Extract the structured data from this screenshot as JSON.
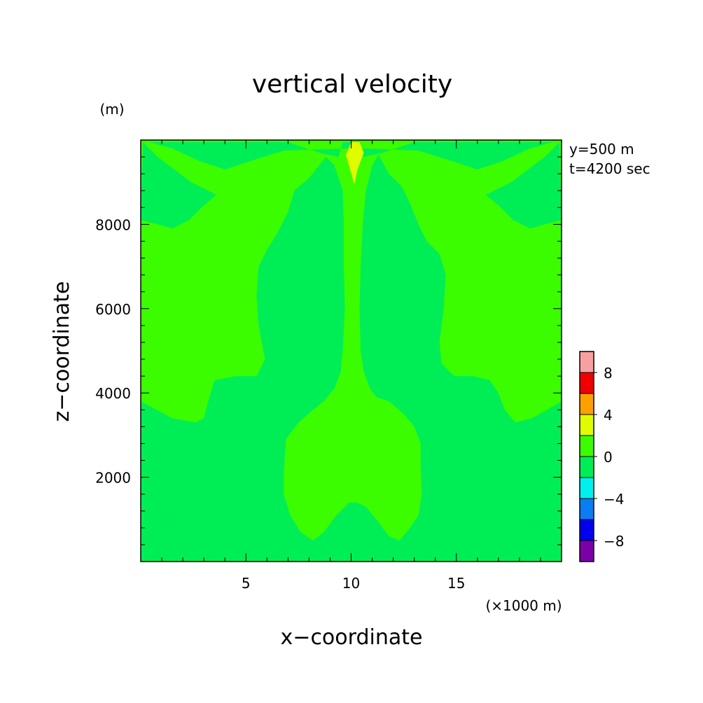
{
  "chart_data": {
    "type": "heatmap",
    "title": "vertical velocity",
    "xlabel": "x−coordinate",
    "ylabel": "z−coordinate",
    "x_unit": "(×1000 m)",
    "y_unit": "(m)",
    "info": [
      "y=500 m",
      "t=4200 sec"
    ],
    "xlim": [
      0,
      20
    ],
    "ylim": [
      0,
      10000
    ],
    "x_ticks": [
      5,
      10,
      15
    ],
    "y_ticks": [
      2000,
      4000,
      6000,
      8000
    ],
    "x_tick_labels": [
      "5",
      "10",
      "15"
    ],
    "y_tick_labels": [
      "2000",
      "4000",
      "6000",
      "8000"
    ],
    "colorbar": {
      "levels": [
        -10,
        -8,
        -6,
        -4,
        -2,
        0,
        2,
        4,
        6,
        8,
        10
      ],
      "labels": [
        "8",
        "4",
        "0",
        "−4",
        "−8"
      ],
      "label_values": [
        8,
        4,
        0,
        -4,
        -8
      ],
      "colors": [
        "#7b00a8",
        "#0000ee",
        "#0a7ef0",
        "#00f0f0",
        "#00ee55",
        "#3cfc00",
        "#e0fc00",
        "#fca000",
        "#f00000",
        "#f8a0a0"
      ]
    },
    "background_band": "0 to 2",
    "regions": [
      {
        "name": "left-negative-lobe",
        "band": "-2 to 0",
        "polygon": [
          [
            0,
            0
          ],
          [
            6.8,
            0
          ],
          [
            6.9,
            250
          ],
          [
            6.6,
            500
          ],
          [
            6.0,
            900
          ],
          [
            5.3,
            1200
          ],
          [
            4.4,
            1400
          ],
          [
            3.5,
            1300
          ],
          [
            2.5,
            1050
          ],
          [
            0,
            1000
          ]
        ]
      },
      {
        "name": "right-negative-lobe",
        "band": "-2 to 0",
        "polygon": [
          [
            20,
            0
          ],
          [
            13.3,
            0
          ],
          [
            13.2,
            250
          ],
          [
            13.5,
            500
          ],
          [
            14.0,
            900
          ],
          [
            14.7,
            1200
          ],
          [
            15.6,
            1400
          ],
          [
            16.5,
            1300
          ],
          [
            17.5,
            1050
          ],
          [
            20,
            1000
          ]
        ]
      },
      {
        "name": "central-negative-column",
        "band": "-2 to 0",
        "polygon": [
          [
            0,
            3800
          ],
          [
            1.5,
            3400
          ],
          [
            2.6,
            3300
          ],
          [
            3.0,
            3400
          ],
          [
            3.2,
            3800
          ],
          [
            3.5,
            4300
          ],
          [
            4.5,
            4400
          ],
          [
            5.5,
            4400
          ],
          [
            5.9,
            4800
          ],
          [
            5.6,
            5600
          ],
          [
            5.5,
            6300
          ],
          [
            5.6,
            7000
          ],
          [
            6.0,
            7400
          ],
          [
            6.5,
            7800
          ],
          [
            7.0,
            8300
          ],
          [
            7.3,
            8800
          ],
          [
            8.0,
            9100
          ],
          [
            8.8,
            9600
          ],
          [
            9.2,
            9400
          ],
          [
            9.6,
            8800
          ],
          [
            9.65,
            8000
          ],
          [
            9.65,
            7000
          ],
          [
            9.7,
            6000
          ],
          [
            9.6,
            5000
          ],
          [
            9.5,
            4500
          ],
          [
            9.2,
            4100
          ],
          [
            8.7,
            3800
          ],
          [
            8.2,
            3600
          ],
          [
            7.5,
            3300
          ],
          [
            6.9,
            2900
          ],
          [
            6.8,
            2100
          ],
          [
            6.8,
            1600
          ],
          [
            7.1,
            1100
          ],
          [
            7.6,
            700
          ],
          [
            8.2,
            500
          ],
          [
            8.7,
            700
          ],
          [
            9.3,
            1100
          ],
          [
            9.9,
            1400
          ],
          [
            10.3,
            1400
          ],
          [
            10.7,
            1300
          ],
          [
            11.2,
            1000
          ],
          [
            11.8,
            600
          ],
          [
            12.3,
            500
          ],
          [
            12.8,
            800
          ],
          [
            13.2,
            1100
          ],
          [
            13.35,
            1600
          ],
          [
            13.3,
            2200
          ],
          [
            13.3,
            2800
          ],
          [
            13.0,
            3200
          ],
          [
            12.5,
            3500
          ],
          [
            11.8,
            3800
          ],
          [
            11.2,
            3900
          ],
          [
            10.9,
            4100
          ],
          [
            10.6,
            4500
          ],
          [
            10.45,
            5000
          ],
          [
            10.4,
            6000
          ],
          [
            10.45,
            7000
          ],
          [
            10.55,
            8000
          ],
          [
            10.7,
            8800
          ],
          [
            11.0,
            9400
          ],
          [
            11.3,
            9650
          ],
          [
            11.8,
            9200
          ],
          [
            12.4,
            8900
          ],
          [
            12.8,
            8500
          ],
          [
            13.2,
            8000
          ],
          [
            13.6,
            7600
          ],
          [
            14.2,
            7300
          ],
          [
            14.5,
            6800
          ],
          [
            14.4,
            6000
          ],
          [
            14.2,
            5200
          ],
          [
            14.3,
            4700
          ],
          [
            14.9,
            4400
          ],
          [
            15.8,
            4400
          ],
          [
            16.6,
            4300
          ],
          [
            17.0,
            4000
          ],
          [
            17.3,
            3600
          ],
          [
            17.8,
            3300
          ],
          [
            18.6,
            3400
          ],
          [
            19.3,
            3600
          ],
          [
            20,
            3800
          ],
          [
            20,
            1000
          ],
          [
            17.5,
            1050
          ],
          [
            16.5,
            1300
          ],
          [
            15.6,
            1400
          ],
          [
            14.7,
            1200
          ],
          [
            14.0,
            900
          ],
          [
            13.5,
            500
          ],
          [
            13.2,
            250
          ],
          [
            13.3,
            0
          ],
          [
            6.8,
            0
          ],
          [
            6.9,
            250
          ],
          [
            6.6,
            500
          ],
          [
            6.0,
            900
          ],
          [
            5.3,
            1200
          ],
          [
            4.4,
            1400
          ],
          [
            3.5,
            1300
          ],
          [
            2.5,
            1050
          ],
          [
            0,
            1000
          ]
        ]
      },
      {
        "name": "upper-left-negative",
        "band": "-2 to 0",
        "polygon": [
          [
            0.1,
            9950
          ],
          [
            0.8,
            9600
          ],
          [
            2.4,
            9000
          ],
          [
            3.6,
            8700
          ],
          [
            2.9,
            8400
          ],
          [
            2.3,
            8100
          ],
          [
            1.5,
            7900
          ],
          [
            0.8,
            8000
          ],
          [
            0,
            8100
          ]
        ]
      },
      {
        "name": "upper-right-negative",
        "band": "-2 to 0",
        "polygon": [
          [
            19.9,
            9950
          ],
          [
            19.2,
            9600
          ],
          [
            17.6,
            9000
          ],
          [
            16.4,
            8700
          ],
          [
            17.1,
            8400
          ],
          [
            17.7,
            8100
          ],
          [
            18.5,
            7900
          ],
          [
            19.2,
            8000
          ],
          [
            20,
            8100
          ]
        ]
      },
      {
        "name": "top-band-negative",
        "band": "-2 to 0",
        "polygon": [
          [
            0.4,
            9950
          ],
          [
            7.0,
            9950
          ],
          [
            8.5,
            9700
          ],
          [
            9.4,
            9600
          ],
          [
            9.6,
            9950
          ],
          [
            10.4,
            9950
          ],
          [
            10.6,
            9600
          ],
          [
            11.5,
            9700
          ],
          [
            13.0,
            9950
          ],
          [
            19.6,
            9950
          ],
          [
            18.5,
            9800
          ],
          [
            17.2,
            9500
          ],
          [
            16.0,
            9300
          ],
          [
            14.8,
            9500
          ],
          [
            13.2,
            9750
          ],
          [
            10.6,
            9800
          ],
          [
            10.2,
            9700
          ],
          [
            9.8,
            9800
          ],
          [
            6.8,
            9750
          ],
          [
            5.2,
            9500
          ],
          [
            4.0,
            9300
          ],
          [
            2.8,
            9500
          ],
          [
            1.5,
            9800
          ]
        ]
      },
      {
        "name": "top-positive-wedge",
        "band": "2 to 4",
        "polygon": [
          [
            9.75,
            9650
          ],
          [
            10.0,
            9950
          ],
          [
            10.4,
            9950
          ],
          [
            10.6,
            9700
          ],
          [
            10.3,
            9300
          ],
          [
            10.15,
            8950
          ],
          [
            9.95,
            9300
          ]
        ]
      }
    ]
  }
}
